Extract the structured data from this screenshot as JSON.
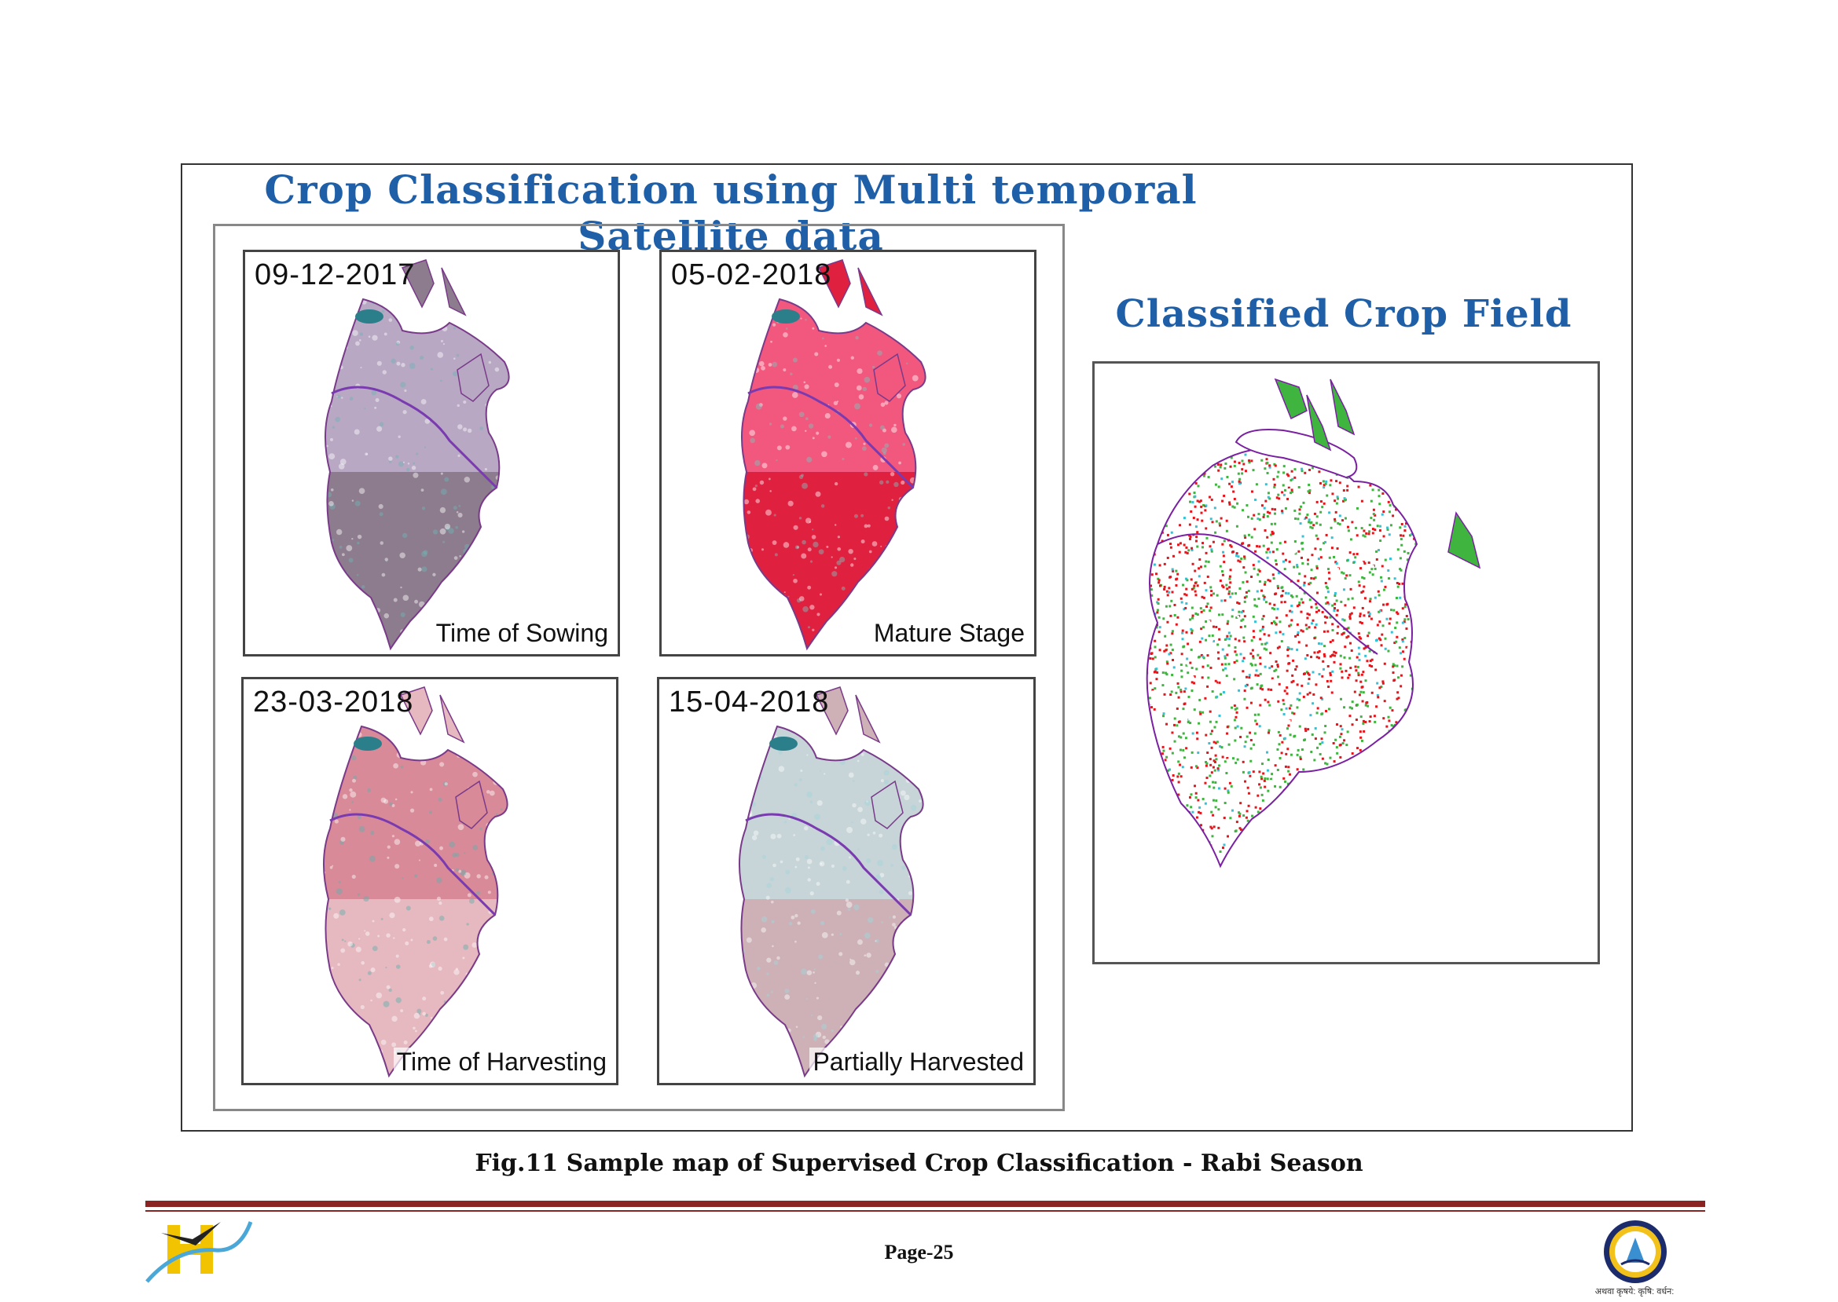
{
  "figure": {
    "title": "Crop Classification using Multi temporal Satellite data",
    "classified_heading": "Classified Crop Field",
    "panels": [
      {
        "date": "09-12-2017",
        "stage": "Time of Sowing",
        "palette": {
          "north": "#b9a8c4",
          "south": "#8d7c8d",
          "accent": "#6fb3b6"
        }
      },
      {
        "date": "05-02-2018",
        "stage": "Mature Stage",
        "palette": {
          "north": "#f2587d",
          "south": "#e0203f",
          "accent": "#7fc3c0"
        }
      },
      {
        "date": "23-03-2018",
        "stage": "Time of Harvesting",
        "palette": {
          "north": "#d98a98",
          "south": "#e6b8bf",
          "accent": "#5fb0ae"
        }
      },
      {
        "date": "15-04-2018",
        "stage": "Partially Harvested",
        "palette": {
          "north": "#c7d4d8",
          "south": "#cdb1b6",
          "accent": "#9fd7dc"
        }
      }
    ],
    "classified_colors": {
      "red": "#e4161c",
      "green": "#3fb43f",
      "cyan": "#38c0d4",
      "boundary": "#7a1fa2"
    },
    "caption": "Fig.11  Sample map of Supervised Crop Classification - Rabi Season"
  },
  "footer": {
    "page_label": "Page-25",
    "right_logo_text": "अथवा कृषये: कृषि: वर्धन:"
  }
}
